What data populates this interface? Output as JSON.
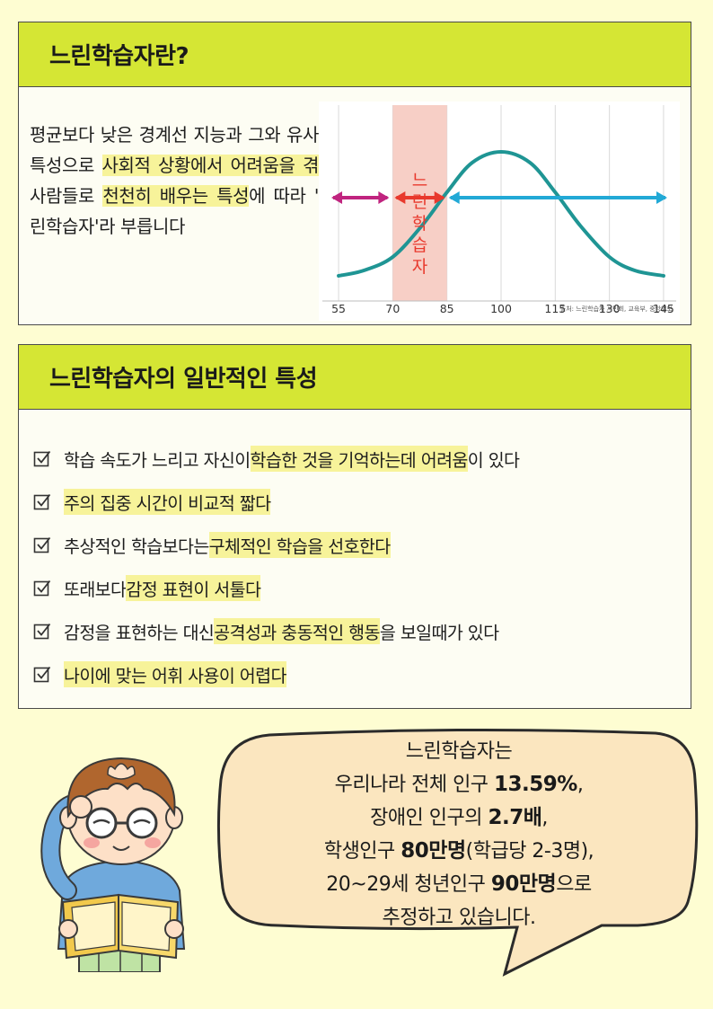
{
  "section1": {
    "title": "느린학습자란?",
    "intro": {
      "p1": "평균보다 낮은 경계선 지능과 그와 유사한 특성으로 ",
      "h1": "사회적 상황에서 어려움을 겪는",
      "p2": " 사람들로 ",
      "h2": "천천히 배우는 특성",
      "p3": "에 따라 '느린학습자'라 부릅니다"
    }
  },
  "chart_data": {
    "type": "line",
    "x_ticks": [
      "55",
      "70",
      "85",
      "100",
      "115",
      "130",
      "145"
    ],
    "x": [
      55,
      62,
      70,
      78,
      85,
      92,
      100,
      108,
      115,
      122,
      130,
      137,
      145
    ],
    "y": [
      0.08,
      0.12,
      0.22,
      0.45,
      0.7,
      0.92,
      1.0,
      0.92,
      0.7,
      0.45,
      0.22,
      0.12,
      0.08
    ],
    "xlim": [
      52,
      147
    ],
    "highlight_range": [
      70,
      85
    ],
    "highlight_label": [
      "느",
      "린",
      "학",
      "습",
      "자"
    ],
    "source": "출처: 느린학습자 시민회, 교육부, 중앙일보",
    "colors": {
      "curve": "#1f9594",
      "band": "#f7cfc6",
      "left_arrow": "#c0247f",
      "right_arrow": "#22a9d6",
      "red_arrow": "#e8392d",
      "label": "#e8392d"
    }
  },
  "section2": {
    "title": "느린학습자의 일반적인 특성",
    "items": [
      {
        "a": "학습 속도가 느리고 자신이 ",
        "h": "학습한 것을 기억하는데 어려움",
        "b": "이 있다"
      },
      {
        "a": "",
        "h": "주의 집중 시간이 비교적 짧다",
        "b": ""
      },
      {
        "a": "추상적인 학습보다는 ",
        "h": "구체적인 학습을 선호한다",
        "b": ""
      },
      {
        "a": "또래보다 ",
        "h": "감정 표현이 서툴다",
        "b": ""
      },
      {
        "a": "감정을 표현하는 대신 ",
        "h": "공격성과 충동적인 행동",
        "b": "을 보일때가 있다"
      },
      {
        "a": "",
        "h": "나이에 맞는 어휘 사용이 어렵다",
        "b": ""
      }
    ]
  },
  "bubble": {
    "l1": "느린학습자는",
    "l2a": "우리나라 전체 인구 ",
    "l2b": "13.59%",
    "l2c": ",",
    "l3a": "장애인 인구의 ",
    "l3b": "2.7배",
    "l3c": ",",
    "l4a": "학생인구 ",
    "l4b": "80만명",
    "l4c": "(학급당 2-3명),",
    "l5a": "20~29세 청년인구 ",
    "l5b": "90만명",
    "l5c": "으로",
    "l6": "추정하고 있습니다."
  },
  "colors": {
    "page_bg": "#fefdd2",
    "header_bg": "#d5e634",
    "highlight": "#f7f39a"
  }
}
